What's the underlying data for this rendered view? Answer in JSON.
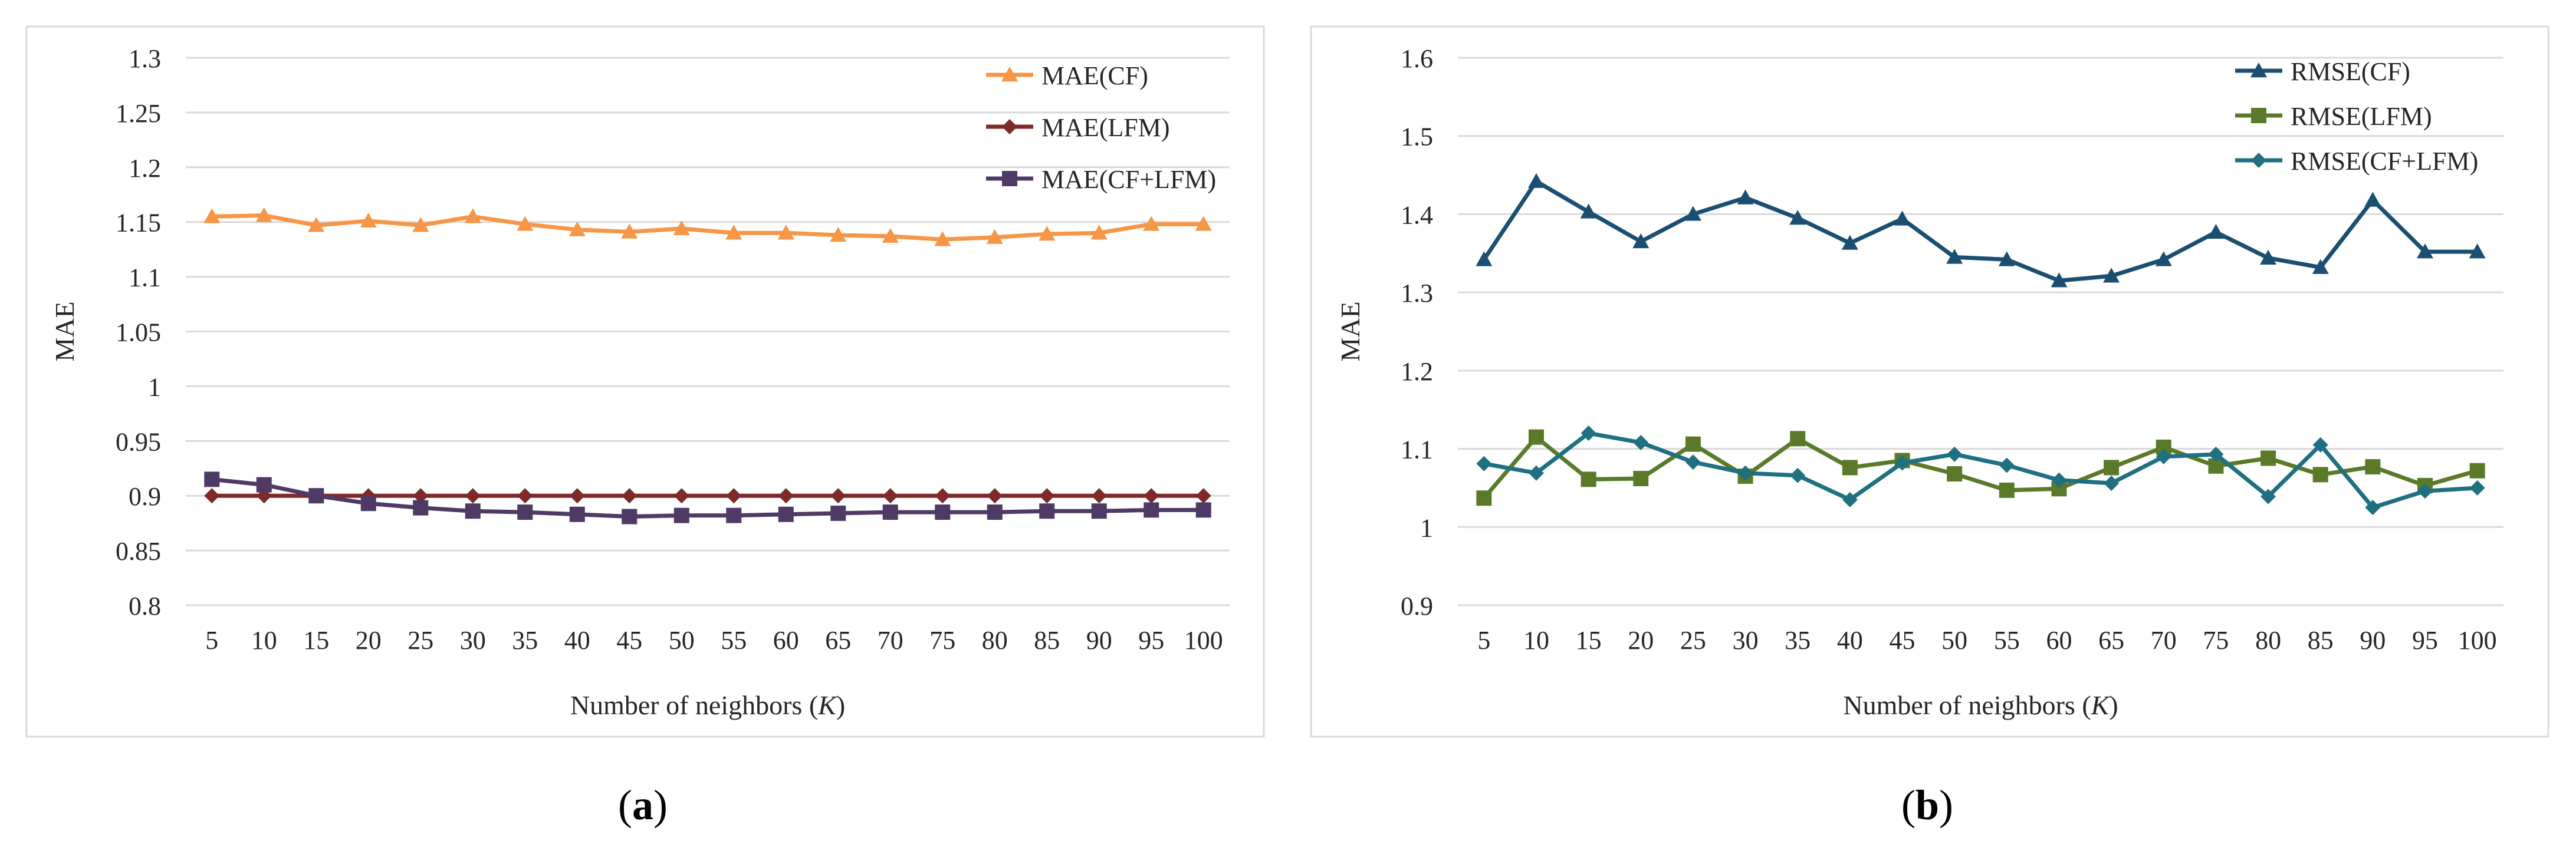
{
  "figure": {
    "panel_labels": [
      "(a)",
      "(b)"
    ]
  },
  "chart_data": [
    {
      "type": "line",
      "title": "",
      "xlabel": "Number of neighbors (K)",
      "ylabel": "MAE",
      "categories": [
        "5",
        "10",
        "15",
        "20",
        "25",
        "30",
        "35",
        "40",
        "45",
        "50",
        "55",
        "60",
        "65",
        "70",
        "75",
        "80",
        "85",
        "90",
        "95",
        "100"
      ],
      "ylim": [
        0.8,
        1.3
      ],
      "yticks": [
        "0.8",
        "0.85",
        "0.9",
        "0.95",
        "1",
        "1.05",
        "1.1",
        "1.15",
        "1.2",
        "1.25",
        "1.3"
      ],
      "grid": true,
      "legend_position": "top-right",
      "series": [
        {
          "name": "MAE(CF)",
          "color": "#F79646",
          "marker": "triangle",
          "values": [
            1.155,
            1.156,
            1.147,
            1.151,
            1.147,
            1.155,
            1.148,
            1.143,
            1.141,
            1.144,
            1.14,
            1.14,
            1.138,
            1.137,
            1.134,
            1.136,
            1.139,
            1.14,
            1.148,
            1.148
          ]
        },
        {
          "name": "MAE(LFM)",
          "color": "#7F2A2A",
          "marker": "diamond",
          "values": [
            0.9,
            0.9,
            0.9,
            0.9,
            0.9,
            0.9,
            0.9,
            0.9,
            0.9,
            0.9,
            0.9,
            0.9,
            0.9,
            0.9,
            0.9,
            0.9,
            0.9,
            0.9,
            0.9,
            0.9
          ]
        },
        {
          "name": "MAE(CF+LFM)",
          "color": "#4F3A66",
          "marker": "square",
          "values": [
            0.915,
            0.91,
            0.9,
            0.893,
            0.889,
            0.886,
            0.885,
            0.883,
            0.881,
            0.882,
            0.882,
            0.883,
            0.884,
            0.885,
            0.885,
            0.885,
            0.886,
            0.886,
            0.887,
            0.887
          ]
        }
      ]
    },
    {
      "type": "line",
      "title": "",
      "xlabel": "Number of neighbors (K)",
      "ylabel": "MAE",
      "categories": [
        "5",
        "10",
        "15",
        "20",
        "25",
        "30",
        "35",
        "40",
        "45",
        "50",
        "55",
        "60",
        "65",
        "70",
        "75",
        "80",
        "85",
        "90",
        "95",
        "100"
      ],
      "ylim": [
        0.9,
        1.6
      ],
      "yticks": [
        "0.9",
        "1",
        "1.1",
        "1.2",
        "1.3",
        "1.4",
        "1.5",
        "1.6"
      ],
      "grid": true,
      "legend_position": "top-right",
      "series": [
        {
          "name": "RMSE(CF)",
          "color": "#1B4F72",
          "marker": "triangle",
          "values": [
            1.342,
            1.442,
            1.403,
            1.365,
            1.4,
            1.421,
            1.395,
            1.363,
            1.394,
            1.345,
            1.342,
            1.315,
            1.321,
            1.342,
            1.377,
            1.344,
            1.332,
            1.418,
            1.352,
            1.352
          ]
        },
        {
          "name": "RMSE(LFM)",
          "color": "#5A7A2A",
          "marker": "square",
          "values": [
            1.037,
            1.115,
            1.061,
            1.062,
            1.106,
            1.065,
            1.113,
            1.076,
            1.085,
            1.068,
            1.047,
            1.049,
            1.076,
            1.102,
            1.078,
            1.088,
            1.067,
            1.077,
            1.053,
            1.072
          ]
        },
        {
          "name": "RMSE(CF+LFM)",
          "color": "#1F7080",
          "marker": "diamond",
          "values": [
            1.081,
            1.069,
            1.12,
            1.108,
            1.083,
            1.069,
            1.066,
            1.035,
            1.082,
            1.093,
            1.079,
            1.06,
            1.056,
            1.09,
            1.093,
            1.039,
            1.105,
            1.025,
            1.046,
            1.05
          ]
        }
      ]
    }
  ]
}
